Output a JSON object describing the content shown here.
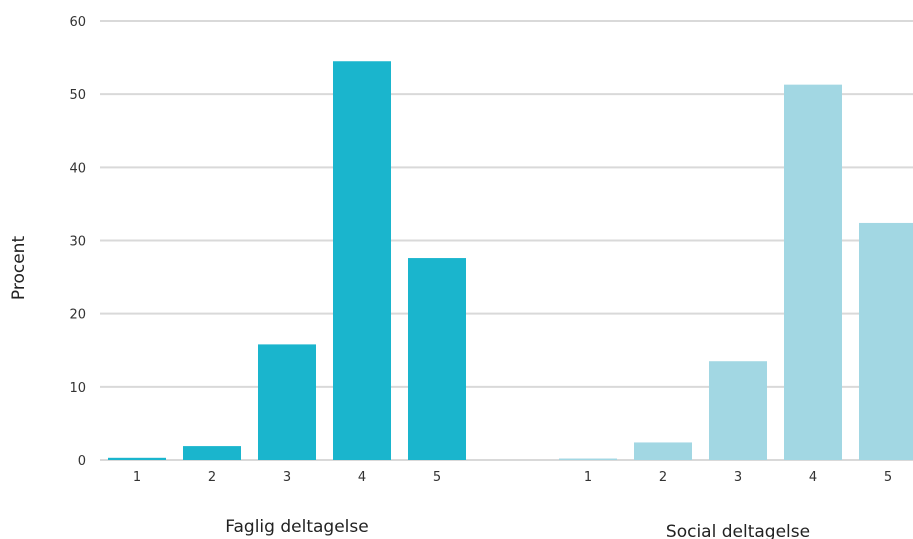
{
  "chart_data": {
    "type": "bar",
    "ylabel": "Procent",
    "ylim": [
      0,
      60
    ],
    "yticks": [
      "0",
      "10",
      "20",
      "30",
      "40",
      "50",
      "60"
    ],
    "grid": true,
    "groups": [
      {
        "name": "Faglig deltagelse",
        "color": "#1ab5cd",
        "categories": [
          "1",
          "2",
          "3",
          "4",
          "5"
        ],
        "values": [
          0.3,
          1.9,
          15.8,
          54.5,
          27.6
        ]
      },
      {
        "name": "Social deltagelse",
        "color": "#a2d7e3",
        "categories": [
          "1",
          "2",
          "3",
          "4",
          "5"
        ],
        "values": [
          0.2,
          2.4,
          13.5,
          51.3,
          32.4
        ]
      }
    ]
  }
}
